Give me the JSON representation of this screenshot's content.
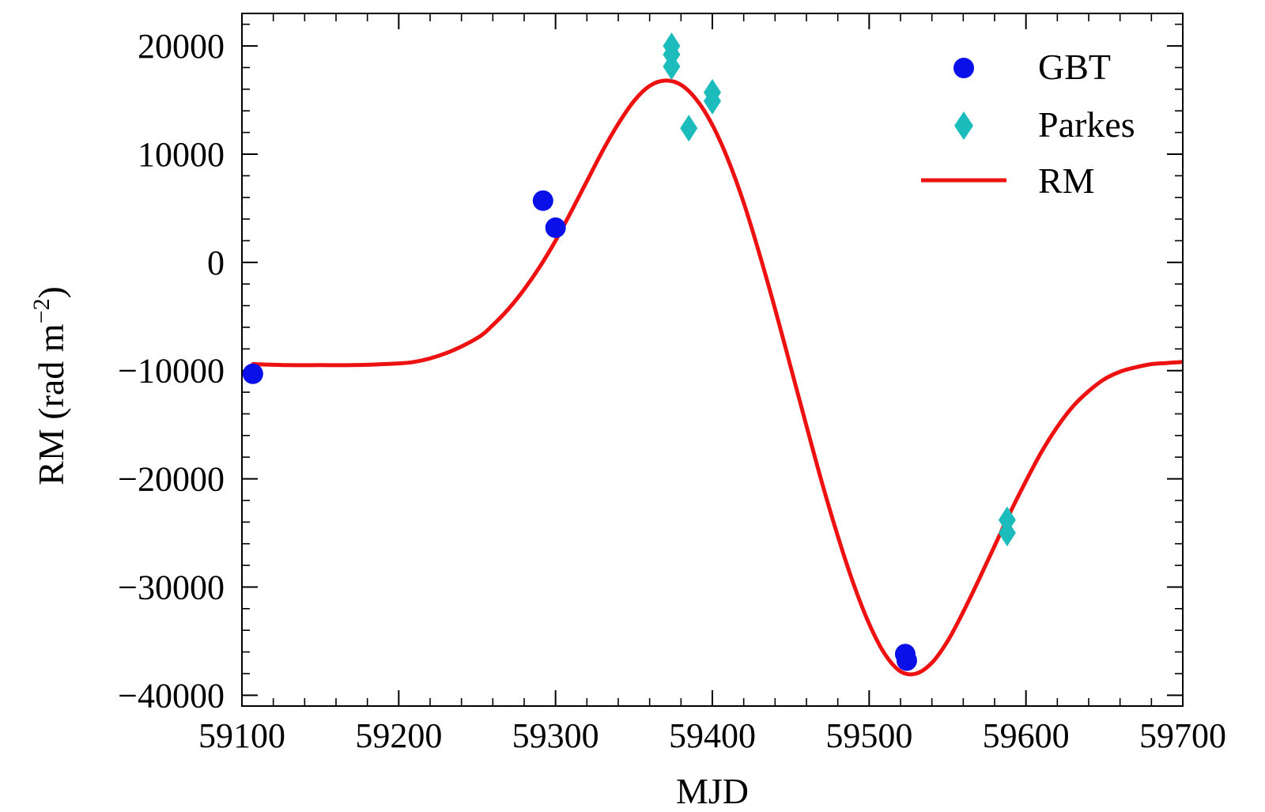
{
  "chart_data": {
    "type": "scatter",
    "title": "",
    "xlabel": "MJD",
    "ylabel_main": "RM (rad m",
    "ylabel_sup": "−2",
    "ylabel_close": ")",
    "xlim": [
      59100,
      59700
    ],
    "ylim": [
      -41000,
      23000
    ],
    "xticks": [
      59100,
      59200,
      59300,
      59400,
      59500,
      59600,
      59700
    ],
    "xtick_labels": [
      "59100",
      "59200",
      "59300",
      "59400",
      "59500",
      "59600",
      "59700"
    ],
    "yticks": [
      20000,
      10000,
      0,
      -10000,
      -20000,
      -30000,
      -40000
    ],
    "ytick_labels": [
      "20000",
      "10000",
      "0",
      "−10000",
      "−20000",
      "−30000",
      "−40000"
    ],
    "x_minor_step": 20,
    "y_minor_step": 2000,
    "grid": false,
    "legend_position": "top-right",
    "series": [
      {
        "name": "GBT",
        "kind": "scatter",
        "marker": "circle",
        "color": "#0a10e8",
        "x": [
          59107,
          59292,
          59300,
          59523,
          59524
        ],
        "y": [
          -10300,
          5700,
          3200,
          -36200,
          -36800
        ]
      },
      {
        "name": "Parkes",
        "kind": "scatter",
        "marker": "diamond",
        "color": "#1cbcbc",
        "x": [
          59374,
          59374,
          59374,
          59385,
          59400,
          59400,
          59588,
          59588
        ],
        "y": [
          20000,
          19200,
          18100,
          12400,
          15700,
          14900,
          -23800,
          -25000
        ]
      },
      {
        "name": "RM",
        "kind": "line",
        "color": "#ee1111",
        "x": [
          59107,
          59130,
          59150,
          59170,
          59190,
          59210,
          59230,
          59250,
          59260,
          59270,
          59280,
          59290,
          59300,
          59310,
          59320,
          59330,
          59340,
          59350,
          59360,
          59370,
          59380,
          59390,
          59400,
          59410,
          59420,
          59430,
          59440,
          59450,
          59460,
          59470,
          59480,
          59490,
          59500,
          59510,
          59520,
          59530,
          59540,
          59550,
          59560,
          59570,
          59580,
          59590,
          59600,
          59610,
          59620,
          59630,
          59640,
          59650,
          59660,
          59670,
          59680,
          59690,
          59700
        ],
        "y": [
          -9400,
          -9500,
          -9500,
          -9500,
          -9400,
          -9200,
          -8400,
          -7000,
          -5800,
          -4300,
          -2500,
          -400,
          2000,
          4700,
          7500,
          10300,
          12800,
          14900,
          16300,
          16800,
          16400,
          15000,
          12700,
          9500,
          5500,
          800,
          -4300,
          -9700,
          -15100,
          -20400,
          -25300,
          -29700,
          -33400,
          -36200,
          -37800,
          -38000,
          -37000,
          -35000,
          -32300,
          -29300,
          -26200,
          -23100,
          -20200,
          -17500,
          -15200,
          -13300,
          -11900,
          -10800,
          -10100,
          -9700,
          -9400,
          -9300,
          -9200
        ]
      }
    ]
  }
}
